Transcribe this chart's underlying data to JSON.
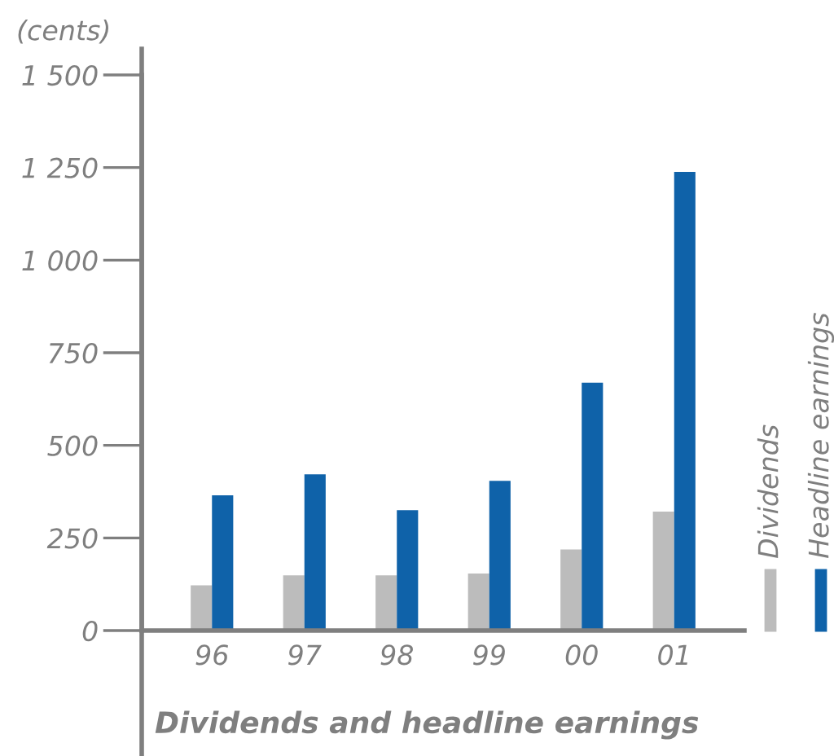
{
  "chart_data": {
    "type": "bar",
    "title": "Dividends and headline earnings",
    "ylabel": "(cents)",
    "categories": [
      "96",
      "97",
      "98",
      "99",
      "00",
      "01"
    ],
    "series": [
      {
        "name": "Dividends",
        "color": "#bcbcbc",
        "values": [
          122,
          149,
          149,
          154,
          219,
          321
        ]
      },
      {
        "name": "Headline earnings",
        "color": "#0f62a9",
        "values": [
          365,
          422,
          325,
          404,
          669,
          1238
        ]
      }
    ],
    "ylim": [
      0,
      1500
    ],
    "yticks": [
      0,
      250,
      500,
      750,
      {
        "value": 1000,
        "label": "1 000"
      },
      {
        "value": 1250,
        "label": "1 250"
      },
      {
        "value": 1500,
        "label": "1 500"
      }
    ],
    "grid": false,
    "legend": "right"
  }
}
